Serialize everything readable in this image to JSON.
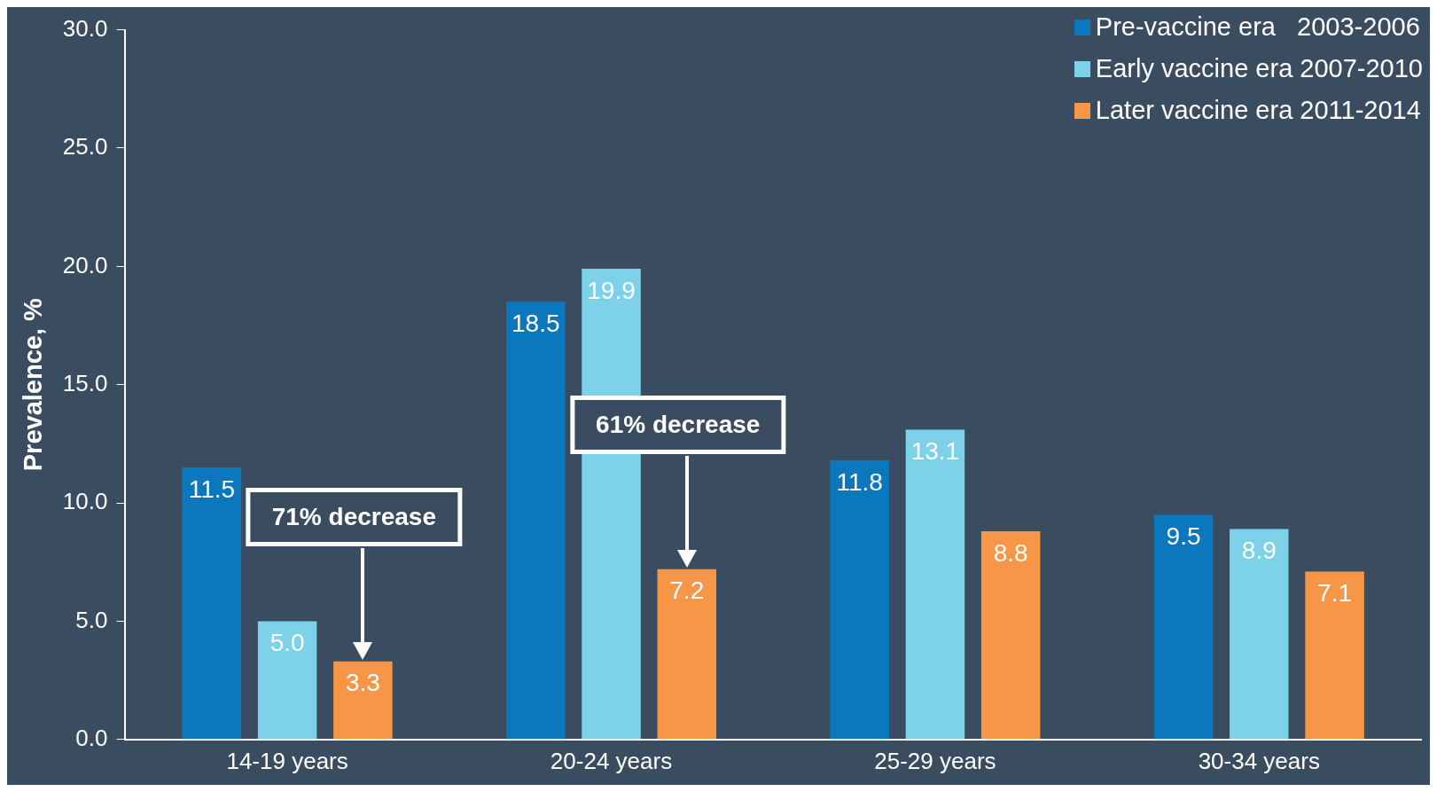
{
  "chart_data": {
    "type": "bar",
    "ylabel": "Prevalence, %",
    "categories": [
      "14-19 years",
      "20-24 years",
      "25-29 years",
      "30-34 years"
    ],
    "series": [
      {
        "name": "Pre-vaccine era   2003-2006",
        "color": "#0b77bd",
        "values": [
          11.5,
          18.5,
          11.8,
          9.5
        ],
        "value_labels": [
          "11.5",
          "18.5",
          "11.8",
          "9.5"
        ]
      },
      {
        "name": "Early vaccine era 2007-2010",
        "color": "#7dd2e9",
        "values": [
          5.0,
          19.9,
          13.1,
          8.9
        ],
        "value_labels": [
          "5.0",
          "19.9",
          "13.1",
          "8.9"
        ]
      },
      {
        "name": "Later vaccine era 2011-2014",
        "color": "#f79646",
        "values": [
          3.3,
          7.2,
          8.8,
          7.1
        ],
        "value_labels": [
          "3.3",
          "7.2",
          "8.8",
          "7.1"
        ]
      }
    ],
    "ylim": [
      0,
      30
    ],
    "yticks": [
      {
        "value": 0,
        "label": "0.0"
      },
      {
        "value": 5,
        "label": "5.0"
      },
      {
        "value": 10,
        "label": "10.0"
      },
      {
        "value": 15,
        "label": "15.0"
      },
      {
        "value": 20,
        "label": "20.0"
      },
      {
        "value": 25,
        "label": "25.0"
      },
      {
        "value": 30,
        "label": "30.0"
      }
    ],
    "annotations": [
      "71% decrease",
      "61% decrease"
    ],
    "grid": false,
    "legend": "top right"
  }
}
